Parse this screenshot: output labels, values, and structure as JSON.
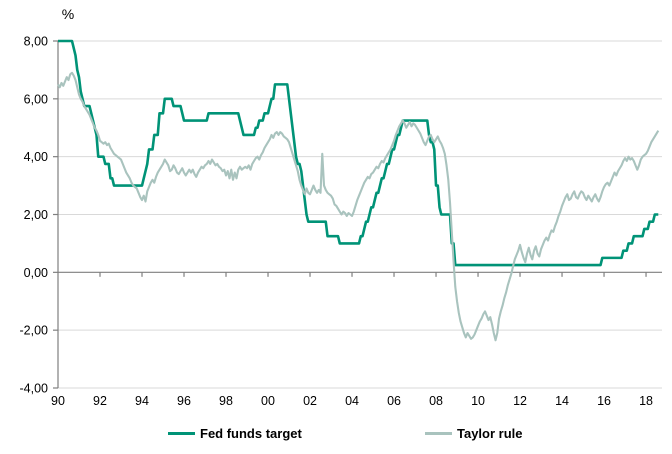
{
  "chart_data": {
    "type": "line",
    "title": "",
    "ylabel": "%",
    "xlabel": "",
    "frequency": "monthly",
    "x_start_year": 1990,
    "xlim": [
      1990,
      2018.76
    ],
    "ylim": [
      -4,
      8
    ],
    "grid": true,
    "legend_position": "bottom",
    "y_ticks": [
      8,
      6,
      4,
      2,
      0,
      -2,
      -4
    ],
    "y_tick_labels": [
      "8,00",
      "6,00",
      "4,00",
      "2,00",
      "0,00",
      "-2,00",
      "-4,00"
    ],
    "x_tick_years": [
      1990,
      1992,
      1994,
      1996,
      1998,
      2000,
      2002,
      2004,
      2006,
      2008,
      2010,
      2012,
      2014,
      2016,
      2018
    ],
    "x_tick_labels": [
      "90",
      "92",
      "94",
      "96",
      "98",
      "00",
      "02",
      "04",
      "06",
      "08",
      "10",
      "12",
      "14",
      "16",
      "18"
    ],
    "axis_color": "#7f7f7f",
    "grid_color": "#d9d9d9",
    "series": [
      {
        "name": "Fed funds target",
        "color": "#009377",
        "stroke_width": 2.6,
        "values": [
          8,
          8,
          8,
          8,
          8,
          8,
          8,
          8,
          8,
          7.75,
          7.5,
          7,
          6.75,
          6.25,
          6,
          5.75,
          5.75,
          5.75,
          5.75,
          5.5,
          5.25,
          5,
          4.75,
          4,
          4,
          4,
          4,
          3.75,
          3.75,
          3.75,
          3.25,
          3.25,
          3,
          3,
          3,
          3,
          3,
          3,
          3,
          3,
          3,
          3,
          3,
          3,
          3,
          3,
          3,
          3,
          3,
          3.25,
          3.5,
          3.75,
          4.25,
          4.25,
          4.25,
          4.75,
          4.75,
          4.75,
          5.5,
          5.5,
          5.5,
          6,
          6,
          6,
          6,
          6,
          5.75,
          5.75,
          5.75,
          5.75,
          5.75,
          5.5,
          5.25,
          5.25,
          5.25,
          5.25,
          5.25,
          5.25,
          5.25,
          5.25,
          5.25,
          5.25,
          5.25,
          5.25,
          5.25,
          5.25,
          5.5,
          5.5,
          5.5,
          5.5,
          5.5,
          5.5,
          5.5,
          5.5,
          5.5,
          5.5,
          5.5,
          5.5,
          5.5,
          5.5,
          5.5,
          5.5,
          5.5,
          5.5,
          5.25,
          5,
          4.75,
          4.75,
          4.75,
          4.75,
          4.75,
          4.75,
          4.75,
          5,
          5,
          5.25,
          5.25,
          5.25,
          5.5,
          5.5,
          5.5,
          5.75,
          6,
          6,
          6.5,
          6.5,
          6.5,
          6.5,
          6.5,
          6.5,
          6.5,
          6.5,
          6,
          5.5,
          5,
          4.5,
          4,
          3.75,
          3.75,
          3.5,
          3,
          2.5,
          2,
          1.75,
          1.75,
          1.75,
          1.75,
          1.75,
          1.75,
          1.75,
          1.75,
          1.75,
          1.75,
          1.75,
          1.25,
          1.25,
          1.25,
          1.25,
          1.25,
          1.25,
          1.25,
          1,
          1,
          1,
          1,
          1,
          1,
          1,
          1,
          1,
          1,
          1,
          1,
          1.25,
          1.25,
          1.5,
          1.75,
          1.75,
          2,
          2.25,
          2.25,
          2.5,
          2.75,
          2.75,
          3,
          3.25,
          3.25,
          3.5,
          3.75,
          3.75,
          4,
          4.25,
          4.25,
          4.5,
          4.75,
          4.75,
          5,
          5.25,
          5.25,
          5.25,
          5.25,
          5.25,
          5.25,
          5.25,
          5.25,
          5.25,
          5.25,
          5.25,
          5.25,
          5.25,
          5.25,
          5.25,
          4.75,
          4.5,
          4.5,
          4.25,
          3,
          3,
          2.25,
          2,
          2,
          2,
          2,
          2,
          2,
          1,
          1,
          0.25,
          0.25,
          0.25,
          0.25,
          0.25,
          0.25,
          0.25,
          0.25,
          0.25,
          0.25,
          0.25,
          0.25,
          0.25,
          0.25,
          0.25,
          0.25,
          0.25,
          0.25,
          0.25,
          0.25,
          0.25,
          0.25,
          0.25,
          0.25,
          0.25,
          0.25,
          0.25,
          0.25,
          0.25,
          0.25,
          0.25,
          0.25,
          0.25,
          0.25,
          0.25,
          0.25,
          0.25,
          0.25,
          0.25,
          0.25,
          0.25,
          0.25,
          0.25,
          0.25,
          0.25,
          0.25,
          0.25,
          0.25,
          0.25,
          0.25,
          0.25,
          0.25,
          0.25,
          0.25,
          0.25,
          0.25,
          0.25,
          0.25,
          0.25,
          0.25,
          0.25,
          0.25,
          0.25,
          0.25,
          0.25,
          0.25,
          0.25,
          0.25,
          0.25,
          0.25,
          0.25,
          0.25,
          0.25,
          0.25,
          0.25,
          0.25,
          0.25,
          0.25,
          0.25,
          0.25,
          0.25,
          0.25,
          0.25,
          0.25,
          0.5,
          0.5,
          0.5,
          0.5,
          0.5,
          0.5,
          0.5,
          0.5,
          0.5,
          0.5,
          0.5,
          0.5,
          0.75,
          0.75,
          0.75,
          1,
          1,
          1,
          1.25,
          1.25,
          1.25,
          1.25,
          1.25,
          1.25,
          1.5,
          1.5,
          1.5,
          1.75,
          1.75,
          1.75,
          2,
          2,
          2
        ]
      },
      {
        "name": "Taylor rule",
        "color": "#a9c3be",
        "stroke_width": 2.1,
        "values": [
          6.5,
          6.4,
          6.55,
          6.45,
          6.6,
          6.75,
          6.65,
          6.85,
          6.9,
          6.8,
          6.65,
          6.4,
          6.15,
          6,
          5.9,
          5.75,
          5.65,
          5.55,
          5.45,
          5.3,
          5.15,
          5,
          4.9,
          4.75,
          4.55,
          4.5,
          4.45,
          4.5,
          4.4,
          4.45,
          4.3,
          4.2,
          4.1,
          4.05,
          4,
          3.95,
          3.9,
          3.75,
          3.6,
          3.45,
          3.35,
          3.25,
          3.1,
          3,
          2.95,
          2.9,
          2.75,
          2.6,
          2.5,
          2.65,
          2.45,
          2.8,
          2.95,
          3.1,
          3.2,
          3.1,
          3.3,
          3.45,
          3.55,
          3.65,
          3.75,
          3.9,
          3.8,
          3.7,
          3.5,
          3.55,
          3.7,
          3.6,
          3.45,
          3.4,
          3.5,
          3.6,
          3.45,
          3.35,
          3.45,
          3.55,
          3.45,
          3.55,
          3.4,
          3.3,
          3.45,
          3.55,
          3.65,
          3.6,
          3.7,
          3.75,
          3.85,
          3.75,
          3.9,
          3.8,
          3.7,
          3.75,
          3.65,
          3.6,
          3.5,
          3.55,
          3.35,
          3.5,
          3.25,
          3.55,
          3.2,
          3.45,
          3.25,
          3.55,
          3.65,
          3.55,
          3.6,
          3.65,
          3.6,
          3.7,
          3.55,
          3.75,
          3.85,
          3.95,
          4,
          3.9,
          4.05,
          4.15,
          4.3,
          4.4,
          4.5,
          4.6,
          4.75,
          4.65,
          4.8,
          4.85,
          4.75,
          4.85,
          4.8,
          4.7,
          4.65,
          4.6,
          4.5,
          4.3,
          4.1,
          3.9,
          3.7,
          3.5,
          3.2,
          3,
          2.85,
          2.7,
          2.9,
          2.75,
          2.7,
          2.85,
          3,
          2.85,
          2.75,
          2.85,
          2.75,
          4.1,
          3,
          2.85,
          2.75,
          2.7,
          2.65,
          2.55,
          2.35,
          2.3,
          2.2,
          2.1,
          2,
          2.1,
          2.05,
          1.95,
          2.05,
          2,
          1.95,
          2.1,
          2.3,
          2.5,
          2.65,
          2.8,
          2.95,
          3.1,
          3.2,
          3.3,
          3.25,
          3.4,
          3.45,
          3.55,
          3.65,
          3.6,
          3.75,
          3.85,
          3.8,
          3.95,
          4.05,
          4.15,
          4.25,
          4.4,
          4.55,
          4.75,
          4.9,
          5.05,
          5.15,
          5.25,
          5.15,
          5,
          5.1,
          5.2,
          5.05,
          5.15,
          5.1,
          5,
          4.9,
          4.8,
          4.65,
          4.5,
          4.4,
          4.55,
          4.7,
          4.75,
          4.6,
          4.5,
          4.6,
          4.7,
          4.55,
          4.45,
          4.3,
          4.1,
          3.7,
          3.2,
          2.4,
          1.4,
          0.4,
          -0.5,
          -1,
          -1.4,
          -1.7,
          -1.9,
          -2.1,
          -2.25,
          -2.1,
          -2.2,
          -2.3,
          -2.25,
          -2.15,
          -2,
          -1.85,
          -1.7,
          -1.6,
          -1.45,
          -1.35,
          -1.5,
          -1.65,
          -1.55,
          -1.8,
          -2.1,
          -2.35,
          -2.1,
          -1.6,
          -1.35,
          -1.15,
          -0.9,
          -0.7,
          -0.45,
          -0.25,
          -0.05,
          0.2,
          0.45,
          0.6,
          0.75,
          0.95,
          0.7,
          0.5,
          0.35,
          0.65,
          0.85,
          0.6,
          0.45,
          0.75,
          0.9,
          0.65,
          0.55,
          0.8,
          0.95,
          1.1,
          1.2,
          1.1,
          1.3,
          1.45,
          1.4,
          1.6,
          1.75,
          1.95,
          2.1,
          2.3,
          2.45,
          2.6,
          2.7,
          2.5,
          2.55,
          2.7,
          2.8,
          2.6,
          2.55,
          2.7,
          2.8,
          2.75,
          2.6,
          2.5,
          2.65,
          2.55,
          2.45,
          2.6,
          2.7,
          2.55,
          2.45,
          2.6,
          2.8,
          2.95,
          3.05,
          3.1,
          3,
          3.15,
          3.3,
          3.45,
          3.35,
          3.5,
          3.6,
          3.7,
          3.85,
          3.95,
          3.85,
          4,
          3.9,
          3.95,
          3.85,
          3.7,
          3.55,
          3.7,
          3.9,
          4,
          4.05,
          4.1,
          4.2,
          4.35,
          4.5,
          4.6,
          4.7,
          4.8,
          4.9
        ]
      }
    ]
  },
  "legend": {
    "items": [
      {
        "label": "Fed funds target"
      },
      {
        "label": "Taylor rule"
      }
    ]
  }
}
